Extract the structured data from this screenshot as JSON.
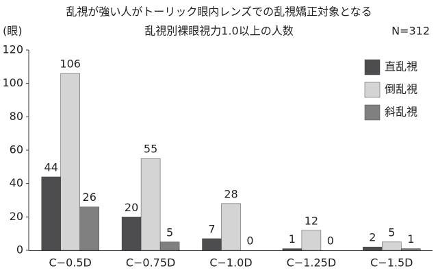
{
  "chart_data": {
    "type": "bar",
    "title": "乱視が強い人がトーリック眼内レンズでの乱視矯正対象となる",
    "subtitle": "乱視別裸眼視力1.0以上の人数",
    "note": "N=312",
    "y_label": "(眼)",
    "categories": [
      "C−0.5D",
      "C−0.75D",
      "C−1.0D",
      "C−1.25D",
      "C−1.5D"
    ],
    "series": [
      {
        "name": "直乱視",
        "color": "#4d4d4f",
        "values": [
          44,
          20,
          7,
          1,
          2
        ]
      },
      {
        "name": "倒乱視",
        "color": "#d4d4d4",
        "values": [
          106,
          55,
          28,
          12,
          5
        ]
      },
      {
        "name": "斜乱視",
        "color": "#808080",
        "values": [
          26,
          5,
          0,
          0,
          1
        ]
      }
    ],
    "ylim": [
      0,
      120
    ],
    "yticks": [
      0,
      20,
      40,
      60,
      80,
      100,
      120
    ],
    "grid": false,
    "legend": "upper right"
  }
}
